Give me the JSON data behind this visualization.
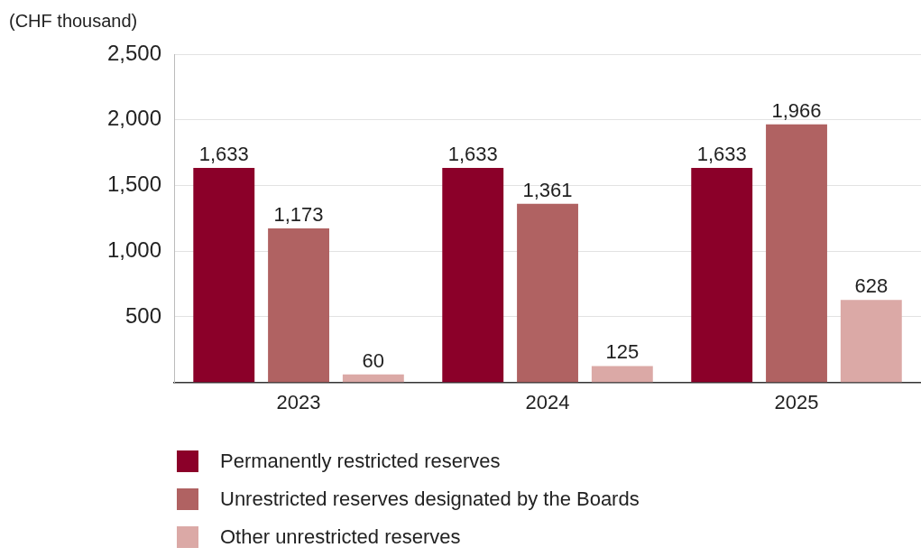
{
  "chart_data": {
    "type": "bar",
    "ylabel": "(CHF thousand)",
    "categories": [
      "2023",
      "2024",
      "2025"
    ],
    "series": [
      {
        "name": "Permanently restricted reserves",
        "color": "#8b0029",
        "values": [
          1633,
          1633,
          1633
        ],
        "value_labels": [
          "1,633",
          "1,633",
          "1,633"
        ]
      },
      {
        "name": "Unrestricted reserves designated by the Boards",
        "color": "#b06262",
        "values": [
          1173,
          1361,
          1966
        ],
        "value_labels": [
          "1,173",
          "1,361",
          "1,966"
        ]
      },
      {
        "name": "Other unrestricted reserves",
        "color": "#dba9a6",
        "values": [
          60,
          125,
          628
        ],
        "value_labels": [
          "60",
          "125",
          "628"
        ]
      }
    ],
    "ylim": [
      0,
      2500
    ],
    "yticks": [
      500,
      {
        "value": 1000,
        "label": "1,000"
      },
      {
        "value": 1500,
        "label": "1,500"
      },
      {
        "value": 2000,
        "label": "2,000"
      },
      {
        "value": 2500,
        "label": "2,500"
      }
    ],
    "grid": "y",
    "legend": "bottom"
  }
}
